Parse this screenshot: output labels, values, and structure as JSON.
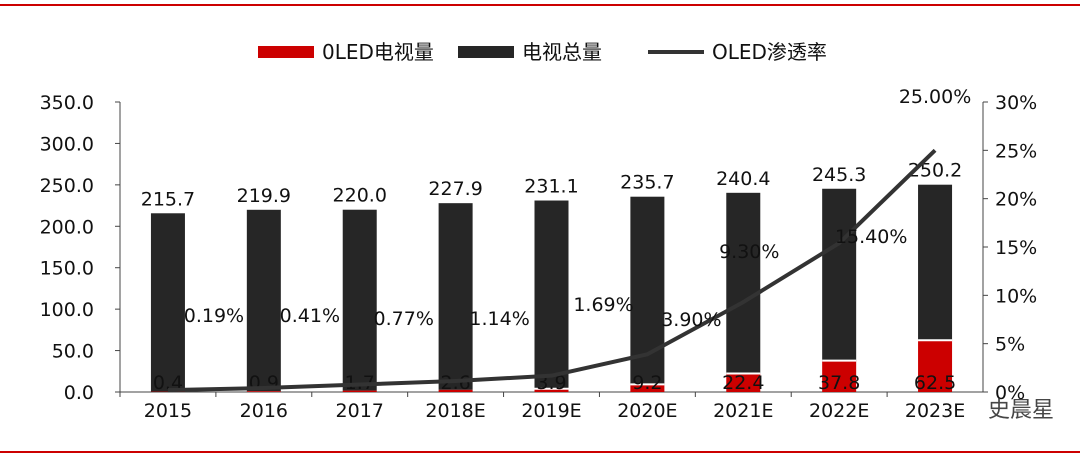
{
  "colors": {
    "oled": "#cc0000",
    "total": "#262626",
    "line": "#333333",
    "rule": "#cc0000"
  },
  "watermark": "史晨星",
  "chart_data": {
    "type": "bar",
    "categories": [
      "2015",
      "2016",
      "2017",
      "2018E",
      "2019E",
      "2020E",
      "2021E",
      "2022E",
      "2023E"
    ],
    "series": [
      {
        "name": "0LED电视量",
        "type": "bar",
        "axis": "left",
        "values": [
          0.4,
          0.9,
          1.7,
          2.6,
          3.9,
          9.2,
          22.4,
          37.8,
          62.5
        ],
        "labels": [
          "0.4",
          "0.9",
          "1.7",
          "2.6",
          "3.9",
          "9.2",
          "22.4",
          "37.8",
          "62.5"
        ]
      },
      {
        "name": "电视总量",
        "type": "bar",
        "axis": "left",
        "values": [
          215.7,
          219.9,
          220.0,
          227.9,
          231.1,
          235.7,
          240.4,
          245.3,
          250.2
        ],
        "labels": [
          "215.7",
          "219.9",
          "220.0",
          "227.9",
          "231.1",
          "235.7",
          "240.4",
          "245.3",
          "250.2"
        ]
      },
      {
        "name": "OLED渗透率",
        "type": "line",
        "axis": "right",
        "values": [
          0.19,
          0.41,
          0.77,
          1.14,
          1.69,
          3.9,
          9.3,
          15.4,
          25.0
        ],
        "labels": [
          "0.19%",
          "0.41%",
          "0.77%",
          "1.14%",
          "1.69%",
          "3.90%",
          "9.30%",
          "15.40%",
          "25.00%"
        ]
      }
    ],
    "y_left": {
      "ylim": [
        0,
        350
      ],
      "ticks": [
        "0.0",
        "50.0",
        "100.0",
        "150.0",
        "200.0",
        "250.0",
        "300.0",
        "350.0"
      ]
    },
    "y_right": {
      "ylim": [
        0,
        30
      ],
      "ticks": [
        "0%",
        "5%",
        "10%",
        "15%",
        "20%",
        "25%",
        "30%"
      ]
    },
    "legend_position": "top",
    "grid": false
  }
}
